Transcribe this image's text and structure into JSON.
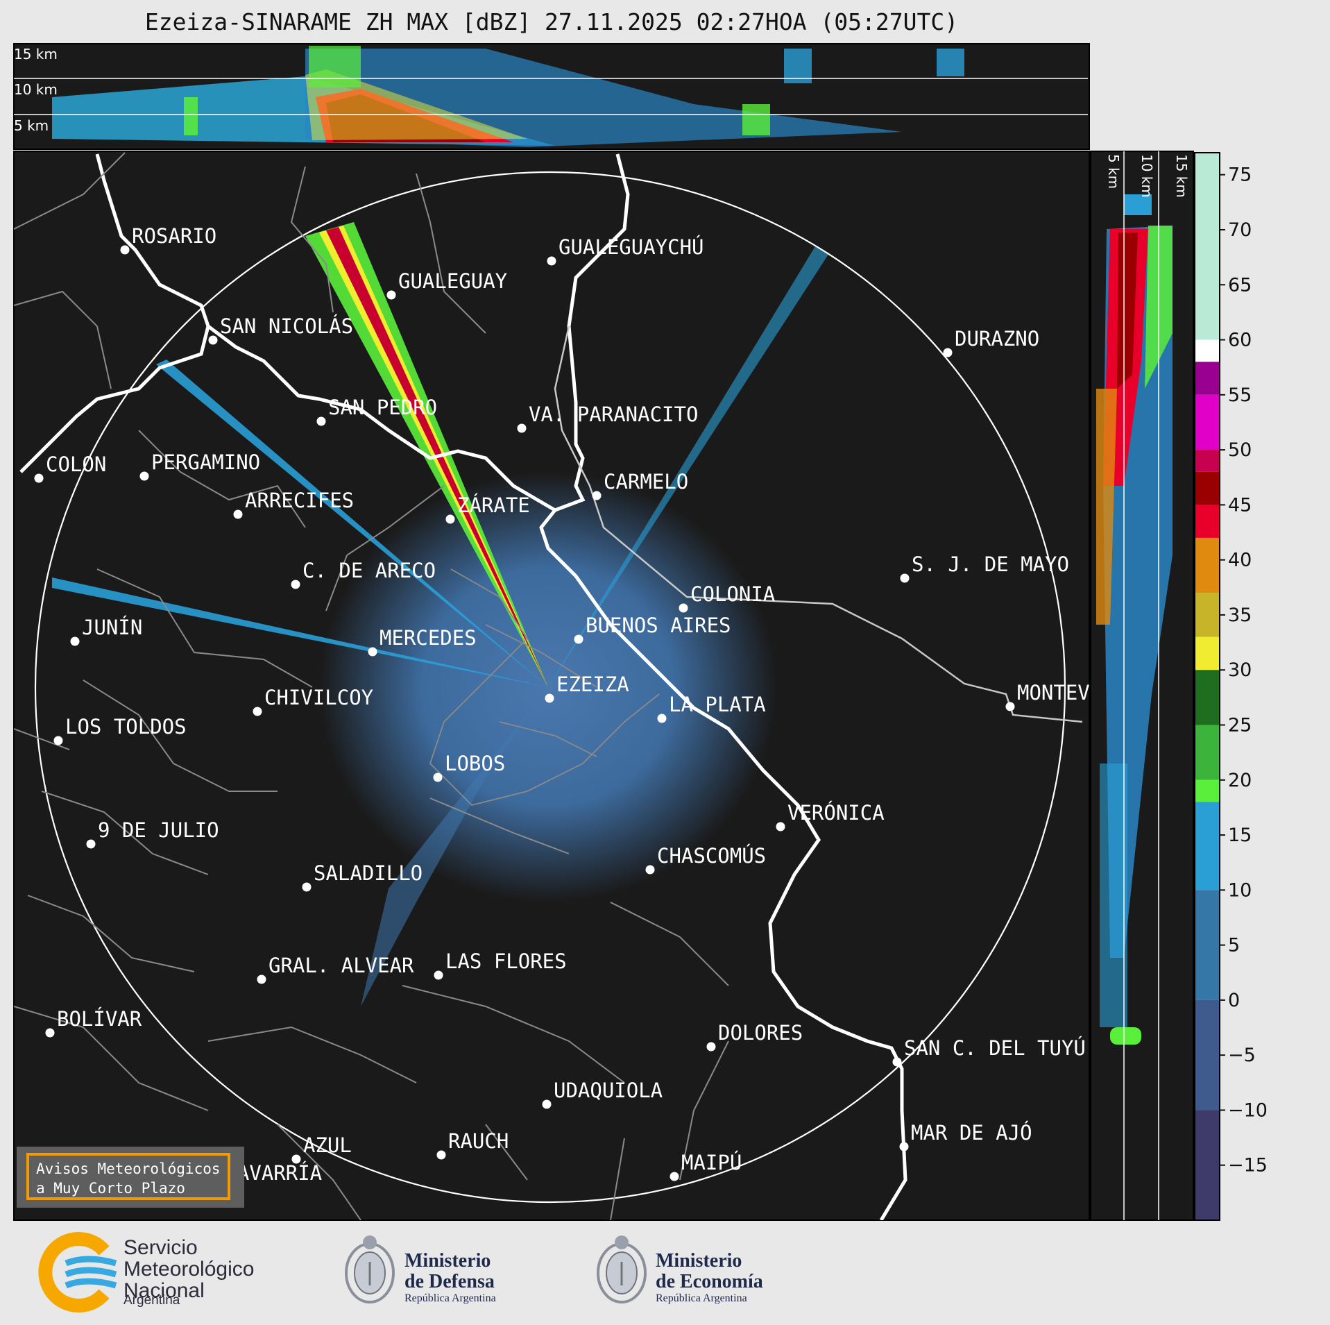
{
  "title": "Ezeiza-SINARAME ZH MAX [dBZ] 27.11.2025 02:27HOA (05:27UTC)",
  "top_profile": {
    "height_labels": [
      "15 km",
      "10 km",
      "5 km"
    ]
  },
  "side_profile": {
    "height_labels": [
      "5 km",
      "10 km",
      "15 km"
    ]
  },
  "colorbar": {
    "ticks": [
      "75",
      "70",
      "65",
      "60",
      "55",
      "50",
      "45",
      "40",
      "35",
      "30",
      "25",
      "20",
      "15",
      "10",
      "5",
      "0",
      "−5",
      "−10",
      "−15"
    ],
    "bands": [
      {
        "from": 60,
        "to": 77,
        "color": "#b8ead6"
      },
      {
        "from": 58,
        "to": 60,
        "color": "#ffffff"
      },
      {
        "from": 55,
        "to": 58,
        "color": "#9a0090"
      },
      {
        "from": 50,
        "to": 55,
        "color": "#e000c8"
      },
      {
        "from": 48,
        "to": 50,
        "color": "#c80050"
      },
      {
        "from": 45,
        "to": 48,
        "color": "#9a0000"
      },
      {
        "from": 42,
        "to": 45,
        "color": "#e8002a"
      },
      {
        "from": 37,
        "to": 42,
        "color": "#e08a10"
      },
      {
        "from": 33,
        "to": 37,
        "color": "#c8b428"
      },
      {
        "from": 30,
        "to": 33,
        "color": "#f0ec30"
      },
      {
        "from": 25,
        "to": 30,
        "color": "#1f6e1f"
      },
      {
        "from": 20,
        "to": 25,
        "color": "#3cb43c"
      },
      {
        "from": 18,
        "to": 20,
        "color": "#5aef3a"
      },
      {
        "from": 10,
        "to": 18,
        "color": "#2a9fd6"
      },
      {
        "from": 0,
        "to": 10,
        "color": "#3578a8"
      },
      {
        "from": -10,
        "to": 0,
        "color": "#3f5a8c"
      },
      {
        "from": -20,
        "to": -10,
        "color": "#3e3a6a"
      }
    ]
  },
  "cities": [
    {
      "name": "ROSARIO"
    },
    {
      "name": "GUALEGUAYCHÚ"
    },
    {
      "name": "GUALEGUAY"
    },
    {
      "name": "SAN NICOLÁS"
    },
    {
      "name": "DURAZNO"
    },
    {
      "name": "SAN PEDRO"
    },
    {
      "name": "VA. PARANACITO"
    },
    {
      "name": "COLON"
    },
    {
      "name": "PERGAMINO"
    },
    {
      "name": "CARMELO"
    },
    {
      "name": "ARRECIFES"
    },
    {
      "name": "ZÁRATE"
    },
    {
      "name": "C. DE ARECO"
    },
    {
      "name": "S. J. DE MAYO"
    },
    {
      "name": "COLONIA"
    },
    {
      "name": "JUNÍN"
    },
    {
      "name": "BUENOS AIRES"
    },
    {
      "name": "MERCEDES"
    },
    {
      "name": "EZEIZA"
    },
    {
      "name": "MONTEVIDEO"
    },
    {
      "name": "CHIVILCOY"
    },
    {
      "name": "LA PLATA"
    },
    {
      "name": "LOS TOLDOS"
    },
    {
      "name": "LOBOS"
    },
    {
      "name": "VERÓNICA"
    },
    {
      "name": "9 DE JULIO"
    },
    {
      "name": "CHASCOMÚS"
    },
    {
      "name": "SALADILLO"
    },
    {
      "name": "GRAL. ALVEAR"
    },
    {
      "name": "LAS FLORES"
    },
    {
      "name": "BOLÍVAR"
    },
    {
      "name": "DOLORES"
    },
    {
      "name": "SAN C. DEL TUYÚ"
    },
    {
      "name": "UDAQUIOLA"
    },
    {
      "name": "MAR DE AJÓ"
    },
    {
      "name": "AZUL"
    },
    {
      "name": "RAUCH"
    },
    {
      "name": "OLAVARRÍA"
    },
    {
      "name": "MAIPÚ"
    }
  ],
  "notice": {
    "line1": "Avisos Meteorológicos",
    "line2": "a Muy Corto Plazo"
  },
  "logos": {
    "smn": {
      "line1": "Servicio",
      "line2": "Meteorológico",
      "line3": "Nacional",
      "sub": "Argentina"
    },
    "defensa": {
      "line1": "Ministerio",
      "line2": "de Defensa",
      "sub": "República Argentina"
    },
    "economia": {
      "line1": "Ministerio",
      "line2": "de Economía",
      "sub": "República Argentina"
    }
  }
}
